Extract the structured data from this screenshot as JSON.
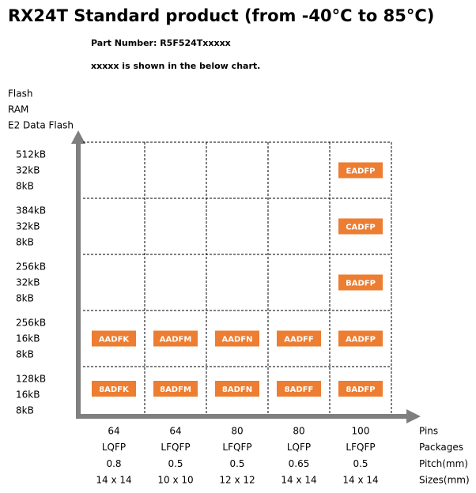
{
  "header": {
    "title": "RX24T  Standard product (from -40°C to 85°C)",
    "part_number": "Part Number: R5F524Txxxxx",
    "note": "xxxxx is shown in the below chart."
  },
  "y_axis_label": [
    "Flash",
    "RAM",
    "E2 Data Flash"
  ],
  "rows": [
    {
      "flash": "512kB",
      "ram": "32kB",
      "e2": "8kB",
      "cells": [
        null,
        null,
        null,
        null,
        "EADFP"
      ]
    },
    {
      "flash": "384kB",
      "ram": "32kB",
      "e2": "8kB",
      "cells": [
        null,
        null,
        null,
        null,
        "CADFP"
      ]
    },
    {
      "flash": "256kB",
      "ram": "32kB",
      "e2": "8kB",
      "cells": [
        null,
        null,
        null,
        null,
        "BADFP"
      ]
    },
    {
      "flash": "256kB",
      "ram": "16kB",
      "e2": "8kB",
      "cells": [
        "AADFK",
        "AADFM",
        "AADFN",
        "AADFF",
        "AADFP"
      ]
    },
    {
      "flash": "128kB",
      "ram": "16kB",
      "e2": "8kB",
      "cells": [
        "8ADFK",
        "8ADFM",
        "8ADFN",
        "8ADFF",
        "8ADFP"
      ]
    }
  ],
  "columns": [
    {
      "pins": 64,
      "package": "LQFP",
      "pitch": 0.8,
      "size": "14 x 14"
    },
    {
      "pins": 64,
      "package": "LFQFP",
      "pitch": 0.5,
      "size": "10 x 10"
    },
    {
      "pins": 80,
      "package": "LFQFP",
      "pitch": 0.5,
      "size": "12 x 12"
    },
    {
      "pins": 80,
      "package": "LQFP",
      "pitch": 0.65,
      "size": "14 x 14"
    },
    {
      "pins": 100,
      "package": "LFQFP",
      "pitch": 0.5,
      "size": "14 x 14"
    }
  ],
  "row_headers": [
    "Pins",
    "Packages",
    "Pitch(mm)",
    "Sizes(mm)"
  ]
}
